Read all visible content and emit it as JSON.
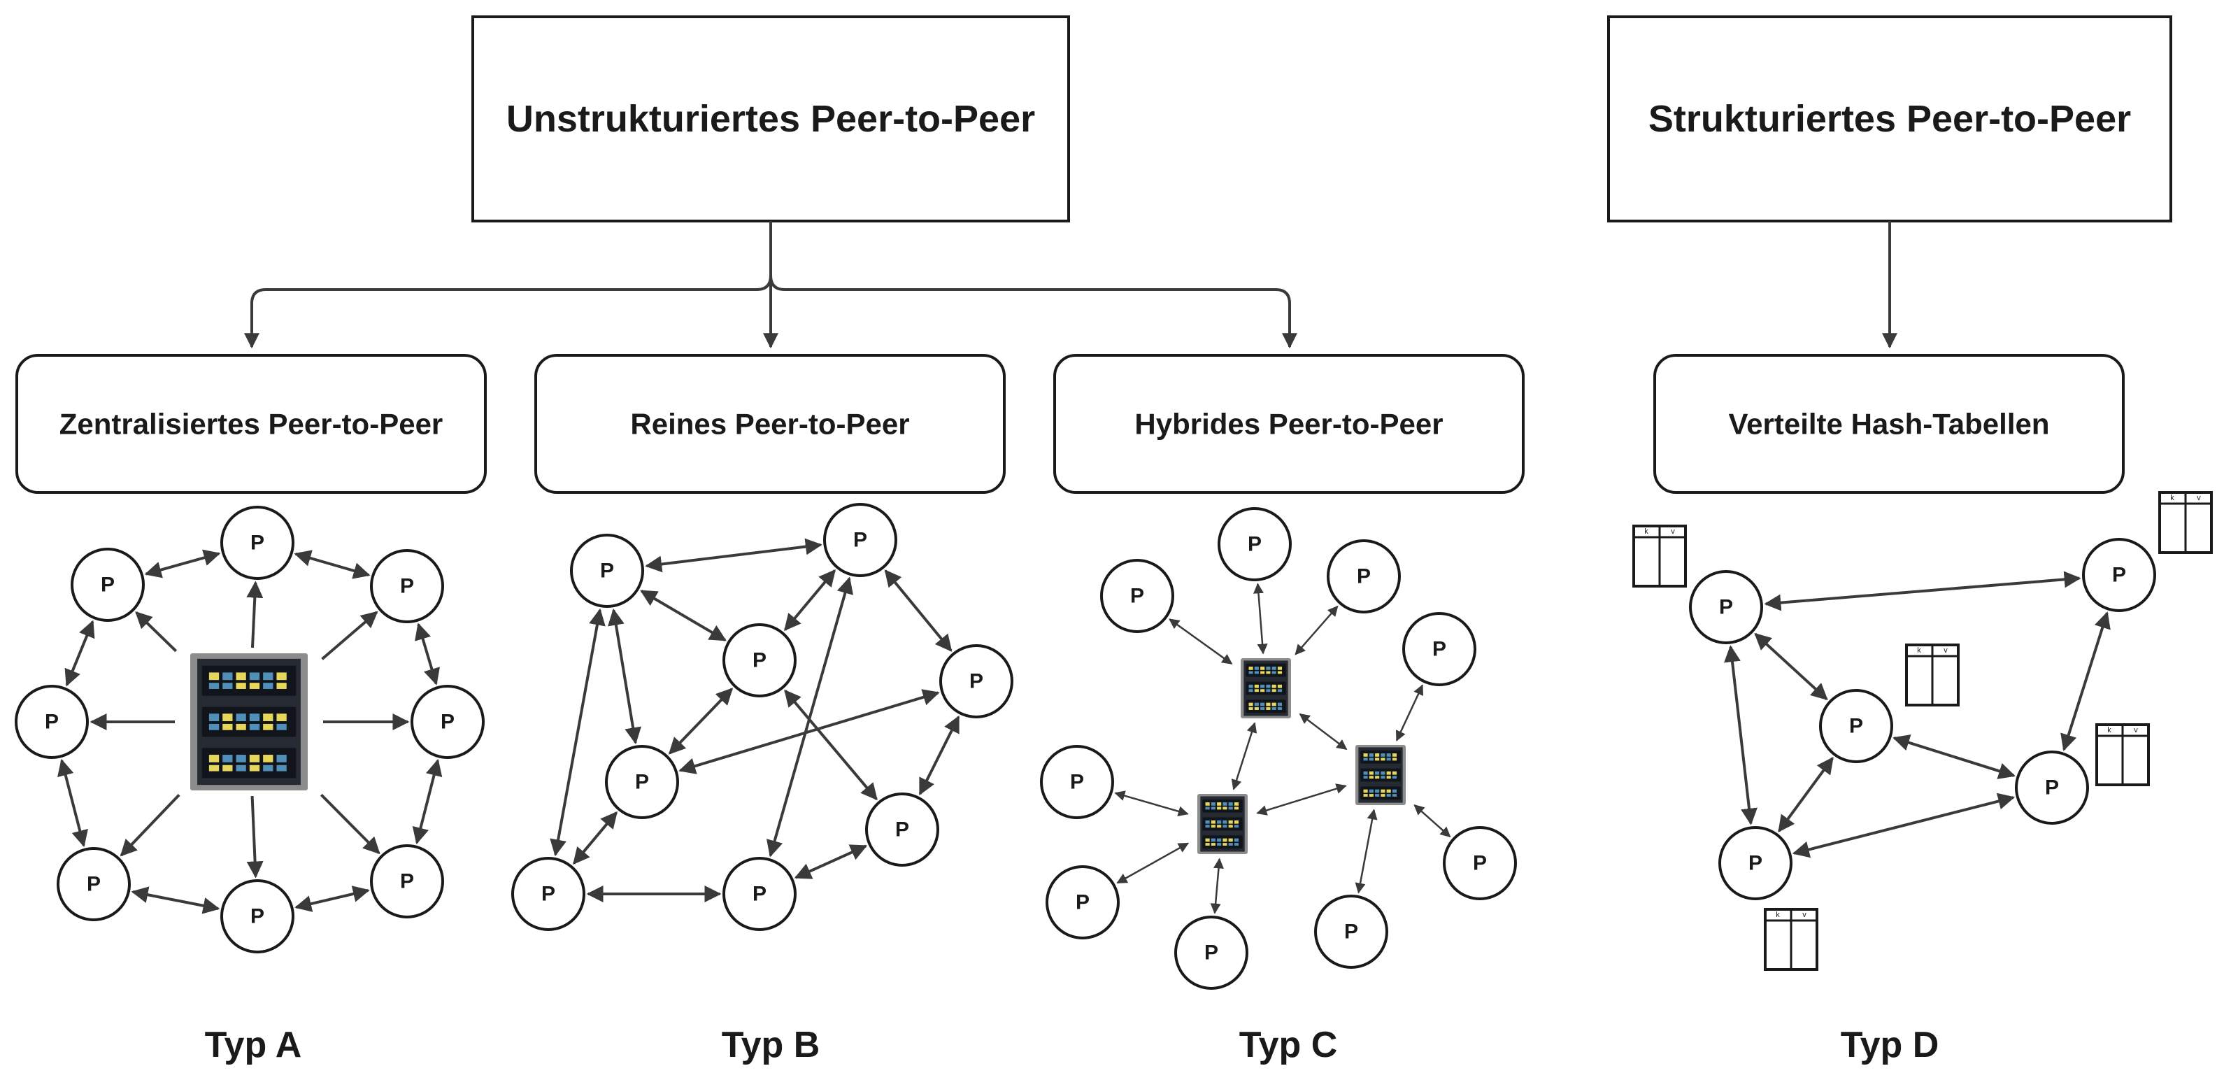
{
  "top_boxes": {
    "unstructured": "Unstrukturiertes Peer-to-Peer",
    "structured": "Strukturiertes Peer-to-Peer"
  },
  "sub_boxes": {
    "centralized": "Zentralisiertes Peer-to-Peer",
    "pure": "Reines Peer-to-Peer",
    "hybrid": "Hybrides Peer-to-Peer",
    "dht": "Verteilte Hash-Tabellen"
  },
  "type_labels": {
    "a": "Typ A",
    "b": "Typ B",
    "c": "Typ C",
    "d": "Typ D"
  },
  "peer_label": "P",
  "hash_table": {
    "key": "k",
    "value": "v"
  },
  "colors": {
    "stroke": "#1a1a1a",
    "arrow": "#3a3a3a",
    "server_frame": "#8c8c8c",
    "server_body": "#262b33",
    "server_light_yellow": "#e6d75c",
    "server_light_blue": "#4f8fb8"
  },
  "icons": [
    "server-icon",
    "peer-node",
    "hash-table-icon",
    "arrow"
  ]
}
